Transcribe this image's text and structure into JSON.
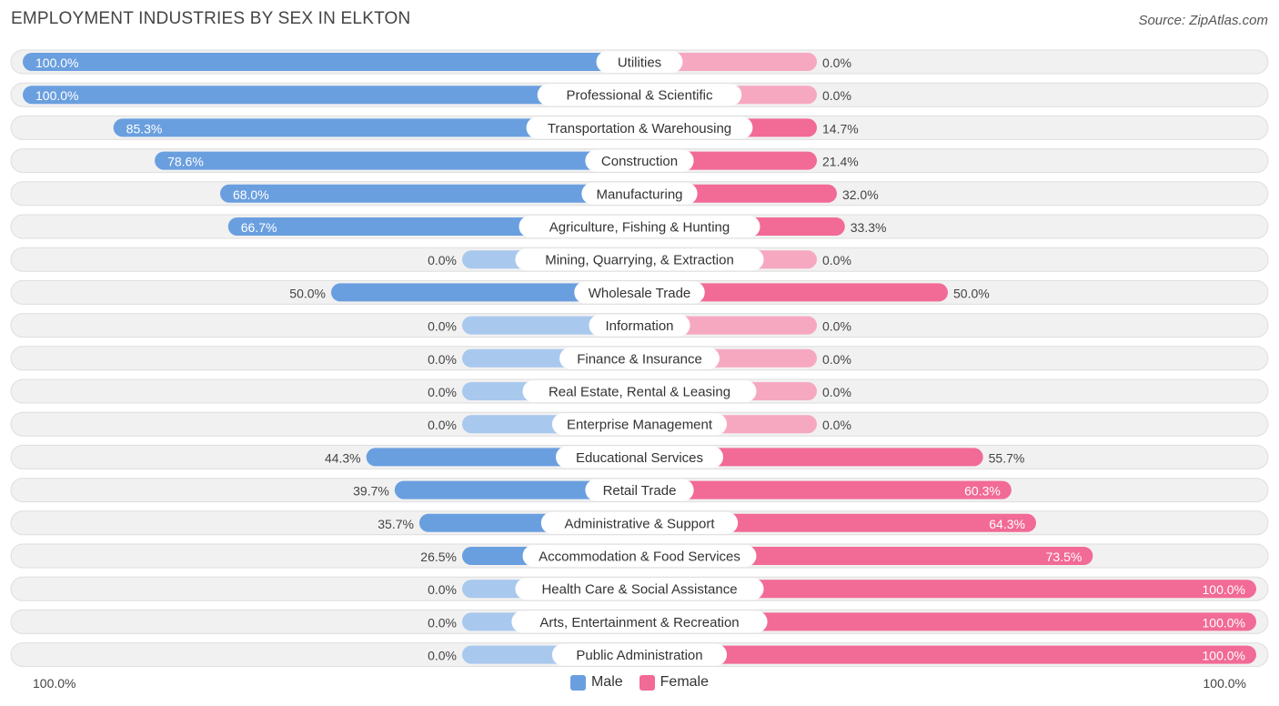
{
  "title": "EMPLOYMENT INDUSTRIES BY SEX IN ELKTON",
  "source": "Source: ZipAtlas.com",
  "colors": {
    "male": "#6a9fdf",
    "male_light": "#a9c8ee",
    "female": "#f26a96",
    "female_light": "#f7a8c1",
    "track": "#f1f1f1"
  },
  "legend": {
    "male": "Male",
    "female": "Female"
  },
  "axis": {
    "left_label": "100.0%",
    "right_label": "100.0%"
  },
  "chart_data": {
    "type": "bar",
    "orientation": "horizontal-diverging",
    "title": "EMPLOYMENT INDUSTRIES BY SEX IN ELKTON",
    "xlim": [
      0,
      100
    ],
    "categories": [
      "Utilities",
      "Professional & Scientific",
      "Transportation & Warehousing",
      "Construction",
      "Manufacturing",
      "Agriculture, Fishing & Hunting",
      "Mining, Quarrying, & Extraction",
      "Wholesale Trade",
      "Information",
      "Finance & Insurance",
      "Real Estate, Rental & Leasing",
      "Enterprise Management",
      "Educational Services",
      "Retail Trade",
      "Administrative & Support",
      "Accommodation & Food Services",
      "Health Care & Social Assistance",
      "Arts, Entertainment & Recreation",
      "Public Administration"
    ],
    "series": [
      {
        "name": "Male",
        "values": [
          100.0,
          100.0,
          85.3,
          78.6,
          68.0,
          66.7,
          0.0,
          50.0,
          0.0,
          0.0,
          0.0,
          0.0,
          44.3,
          39.7,
          35.7,
          26.5,
          0.0,
          0.0,
          0.0
        ],
        "labels": [
          "100.0%",
          "100.0%",
          "85.3%",
          "78.6%",
          "68.0%",
          "66.7%",
          "0.0%",
          "50.0%",
          "0.0%",
          "0.0%",
          "0.0%",
          "0.0%",
          "44.3%",
          "39.7%",
          "35.7%",
          "26.5%",
          "0.0%",
          "0.0%",
          "0.0%"
        ]
      },
      {
        "name": "Female",
        "values": [
          0.0,
          0.0,
          14.7,
          21.4,
          32.0,
          33.3,
          0.0,
          50.0,
          0.0,
          0.0,
          0.0,
          0.0,
          55.7,
          60.3,
          64.3,
          73.5,
          100.0,
          100.0,
          100.0
        ],
        "labels": [
          "0.0%",
          "0.0%",
          "14.7%",
          "21.4%",
          "32.0%",
          "33.3%",
          "0.0%",
          "50.0%",
          "0.0%",
          "0.0%",
          "0.0%",
          "0.0%",
          "55.7%",
          "60.3%",
          "64.3%",
          "73.5%",
          "100.0%",
          "100.0%",
          "100.0%"
        ]
      }
    ]
  }
}
